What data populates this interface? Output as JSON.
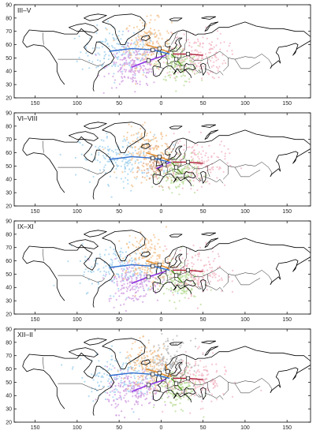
{
  "colors": {
    "blue_points": "#9ccfee",
    "violet_points": "#cf9be0",
    "orange_points": "#f3c08a",
    "gray_points": "#b8b8b8",
    "green_points": "#b8dc97",
    "pink_points": "#f2b3c2",
    "brown_points": "#d7a48a",
    "blue_track": "#2f6fd0",
    "violet_track": "#8a2be2",
    "orange_track": "#e08a2a",
    "green_track": "#5aa02c",
    "red_track": "#b0203a"
  },
  "panels": [
    {
      "label": "III–V",
      "clusters": [
        "blue_points",
        "orange_points",
        "violet_points",
        "green_points",
        "pink_points"
      ]
    },
    {
      "label": "VI–VIII",
      "clusters": [
        "blue_points",
        "orange_points",
        "brown_points",
        "pink_points",
        "green_points"
      ]
    },
    {
      "label": "IX–XI",
      "clusters": [
        "blue_points",
        "violet_points",
        "orange_points",
        "green_points",
        "pink_points"
      ]
    },
    {
      "label": "XII–II",
      "clusters": [
        "blue_points",
        "violet_points",
        "orange_points",
        "gray_points",
        "green_points",
        "pink_points"
      ]
    }
  ],
  "axes": {
    "y_ticks": [
      20,
      30,
      40,
      50,
      60,
      70,
      80,
      90
    ],
    "x_tick_labels": [
      "150",
      "100",
      "50",
      "0",
      "50",
      "100",
      "150"
    ]
  }
}
